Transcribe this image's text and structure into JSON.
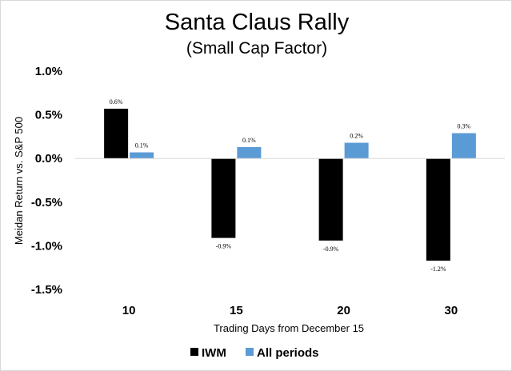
{
  "chart_data": {
    "type": "bar",
    "title": "Santa Claus Rally",
    "subtitle": "(Small Cap Factor)",
    "xlabel": "Trading Days from December 15",
    "ylabel": "Meidan Return vs. S&P 500",
    "categories": [
      "10",
      "15",
      "20",
      "30"
    ],
    "ylim": [
      -1.5,
      1.0
    ],
    "yticks": [
      1.0,
      0.5,
      0.0,
      -0.5,
      -1.0,
      -1.5
    ],
    "ytick_labels": [
      "1.0%",
      "0.5%",
      "0.0%",
      "-0.5%",
      "-1.0%",
      "-1.5%"
    ],
    "grid": false,
    "legend": "bottom",
    "series": [
      {
        "name": "IWM",
        "color": "#000000",
        "values": [
          0.57,
          -0.91,
          -0.94,
          -1.17
        ],
        "labels": [
          "0.6%",
          "-0.9%",
          "-0.9%",
          "-1.2%"
        ]
      },
      {
        "name": "All periods",
        "color": "#5b9bd5",
        "values": [
          0.07,
          0.13,
          0.18,
          0.29
        ],
        "labels": [
          "0.1%",
          "0.1%",
          "0.2%",
          "0.3%"
        ]
      }
    ]
  }
}
